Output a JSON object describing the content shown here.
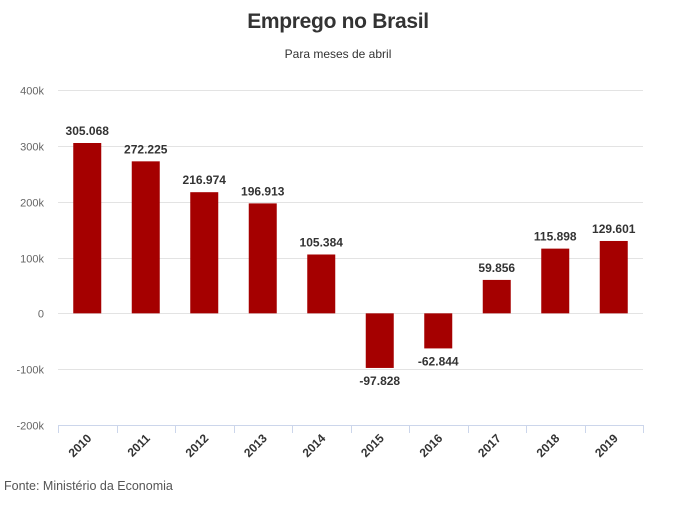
{
  "chart_data": {
    "type": "bar",
    "title": "Emprego no Brasil",
    "subtitle": "Para meses de abril",
    "categories": [
      "2010",
      "2011",
      "2012",
      "2013",
      "2014",
      "2015",
      "2016",
      "2017",
      "2018",
      "2019"
    ],
    "values": [
      305068,
      272225,
      216974,
      196913,
      105384,
      -97828,
      -62844,
      59856,
      115898,
      129601
    ],
    "data_labels": [
      "305.068",
      "272.225",
      "216.974",
      "196.913",
      "105.384",
      "-97.828",
      "-62.844",
      "59.856",
      "115.898",
      "129.601"
    ],
    "ylim": [
      -200000,
      400000
    ],
    "yticks": [
      400000,
      300000,
      200000,
      100000,
      0,
      -100000,
      -200000
    ],
    "ytick_labels": [
      "400k",
      "300k",
      "200k",
      "100k",
      "0",
      "-100k",
      "-200k"
    ],
    "xlabel": "",
    "ylabel": "",
    "grid": true,
    "bar_color": "#a50000"
  },
  "source": "Fonte: Ministério da Economia"
}
